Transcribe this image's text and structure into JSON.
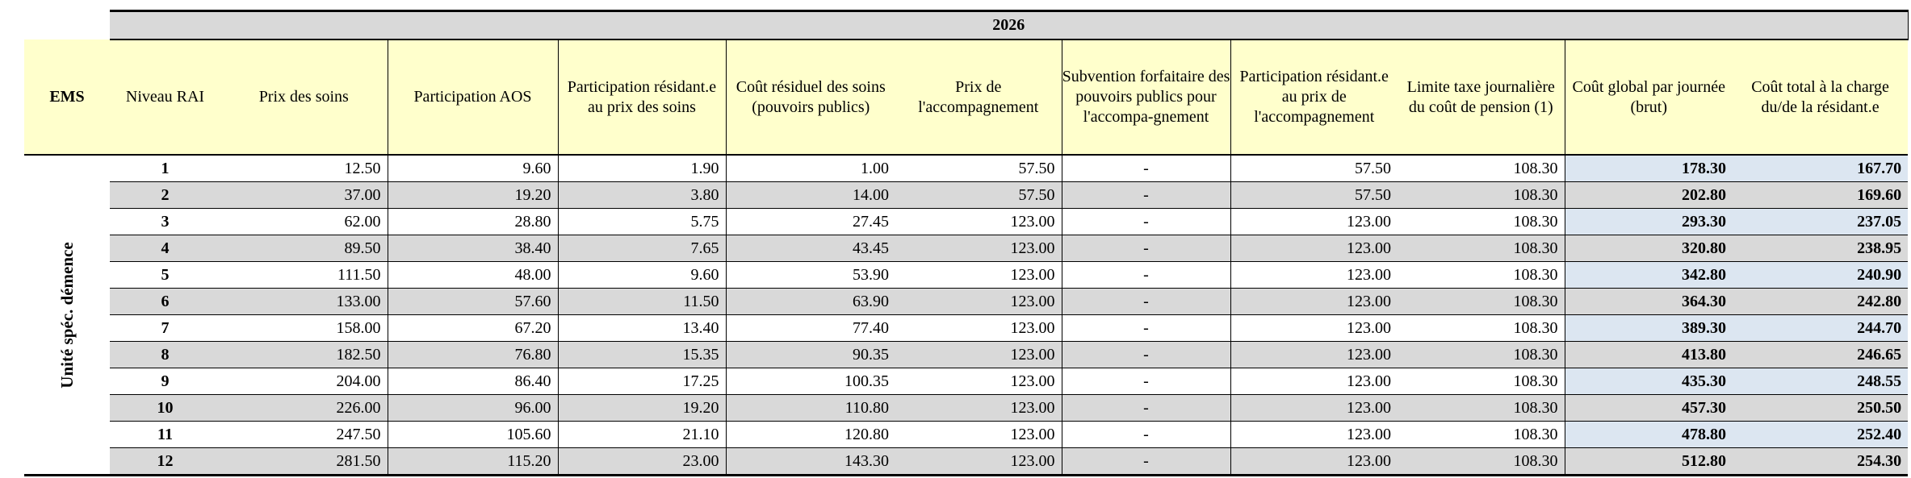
{
  "year": "2026",
  "headers": {
    "ems": "EMS",
    "niveau_rai": "Niveau RAI",
    "prix_soins": "Prix des soins",
    "participation_aos": "Participation AOS",
    "participation_residant_soins": "Participation résidant.e au prix des soins",
    "cout_residuel_line1": "Coût résiduel des soins",
    "cout_residuel_line2": "(pouvoirs publics)",
    "prix_accompagnement": "Prix de l'accompagnement",
    "subvention": "Subvention forfaitaire des pouvoirs publics pour l'accompa-gnement",
    "participation_residant_accomp": "Participation résidant.e au prix de l'accompagnement",
    "limite_taxe": "Limite taxe journalière du coût de pension (1)",
    "cout_global": "Coût global par journée (brut)",
    "cout_total": "Coût total à la charge du/de la résidant.e"
  },
  "ems_label": "Unité spéc. démence",
  "rows": [
    {
      "niveau": "1",
      "prix_soins": "12.50",
      "participation_aos": "9.60",
      "participation_residant_soins": "1.90",
      "cout_residuel": "1.00",
      "prix_accompagnement": "57.50",
      "subvention": "-",
      "participation_residant_accomp": "57.50",
      "limite_taxe": "108.30",
      "cout_global": "178.30",
      "cout_total": "167.70"
    },
    {
      "niveau": "2",
      "prix_soins": "37.00",
      "participation_aos": "19.20",
      "participation_residant_soins": "3.80",
      "cout_residuel": "14.00",
      "prix_accompagnement": "57.50",
      "subvention": "-",
      "participation_residant_accomp": "57.50",
      "limite_taxe": "108.30",
      "cout_global": "202.80",
      "cout_total": "169.60"
    },
    {
      "niveau": "3",
      "prix_soins": "62.00",
      "participation_aos": "28.80",
      "participation_residant_soins": "5.75",
      "cout_residuel": "27.45",
      "prix_accompagnement": "123.00",
      "subvention": "-",
      "participation_residant_accomp": "123.00",
      "limite_taxe": "108.30",
      "cout_global": "293.30",
      "cout_total": "237.05"
    },
    {
      "niveau": "4",
      "prix_soins": "89.50",
      "participation_aos": "38.40",
      "participation_residant_soins": "7.65",
      "cout_residuel": "43.45",
      "prix_accompagnement": "123.00",
      "subvention": "-",
      "participation_residant_accomp": "123.00",
      "limite_taxe": "108.30",
      "cout_global": "320.80",
      "cout_total": "238.95"
    },
    {
      "niveau": "5",
      "prix_soins": "111.50",
      "participation_aos": "48.00",
      "participation_residant_soins": "9.60",
      "cout_residuel": "53.90",
      "prix_accompagnement": "123.00",
      "subvention": "-",
      "participation_residant_accomp": "123.00",
      "limite_taxe": "108.30",
      "cout_global": "342.80",
      "cout_total": "240.90"
    },
    {
      "niveau": "6",
      "prix_soins": "133.00",
      "participation_aos": "57.60",
      "participation_residant_soins": "11.50",
      "cout_residuel": "63.90",
      "prix_accompagnement": "123.00",
      "subvention": "-",
      "participation_residant_accomp": "123.00",
      "limite_taxe": "108.30",
      "cout_global": "364.30",
      "cout_total": "242.80"
    },
    {
      "niveau": "7",
      "prix_soins": "158.00",
      "participation_aos": "67.20",
      "participation_residant_soins": "13.40",
      "cout_residuel": "77.40",
      "prix_accompagnement": "123.00",
      "subvention": "-",
      "participation_residant_accomp": "123.00",
      "limite_taxe": "108.30",
      "cout_global": "389.30",
      "cout_total": "244.70"
    },
    {
      "niveau": "8",
      "prix_soins": "182.50",
      "participation_aos": "76.80",
      "participation_residant_soins": "15.35",
      "cout_residuel": "90.35",
      "prix_accompagnement": "123.00",
      "subvention": "-",
      "participation_residant_accomp": "123.00",
      "limite_taxe": "108.30",
      "cout_global": "413.80",
      "cout_total": "246.65"
    },
    {
      "niveau": "9",
      "prix_soins": "204.00",
      "participation_aos": "86.40",
      "participation_residant_soins": "17.25",
      "cout_residuel": "100.35",
      "prix_accompagnement": "123.00",
      "subvention": "-",
      "participation_residant_accomp": "123.00",
      "limite_taxe": "108.30",
      "cout_global": "435.30",
      "cout_total": "248.55"
    },
    {
      "niveau": "10",
      "prix_soins": "226.00",
      "participation_aos": "96.00",
      "participation_residant_soins": "19.20",
      "cout_residuel": "110.80",
      "prix_accompagnement": "123.00",
      "subvention": "-",
      "participation_residant_accomp": "123.00",
      "limite_taxe": "108.30",
      "cout_global": "457.30",
      "cout_total": "250.50"
    },
    {
      "niveau": "11",
      "prix_soins": "247.50",
      "participation_aos": "105.60",
      "participation_residant_soins": "21.10",
      "cout_residuel": "120.80",
      "prix_accompagnement": "123.00",
      "subvention": "-",
      "participation_residant_accomp": "123.00",
      "limite_taxe": "108.30",
      "cout_global": "478.80",
      "cout_total": "252.40"
    },
    {
      "niveau": "12",
      "prix_soins": "281.50",
      "participation_aos": "115.20",
      "participation_residant_soins": "23.00",
      "cout_residuel": "143.30",
      "prix_accompagnement": "123.00",
      "subvention": "-",
      "participation_residant_accomp": "123.00",
      "limite_taxe": "108.30",
      "cout_global": "512.80",
      "cout_total": "254.30"
    }
  ]
}
